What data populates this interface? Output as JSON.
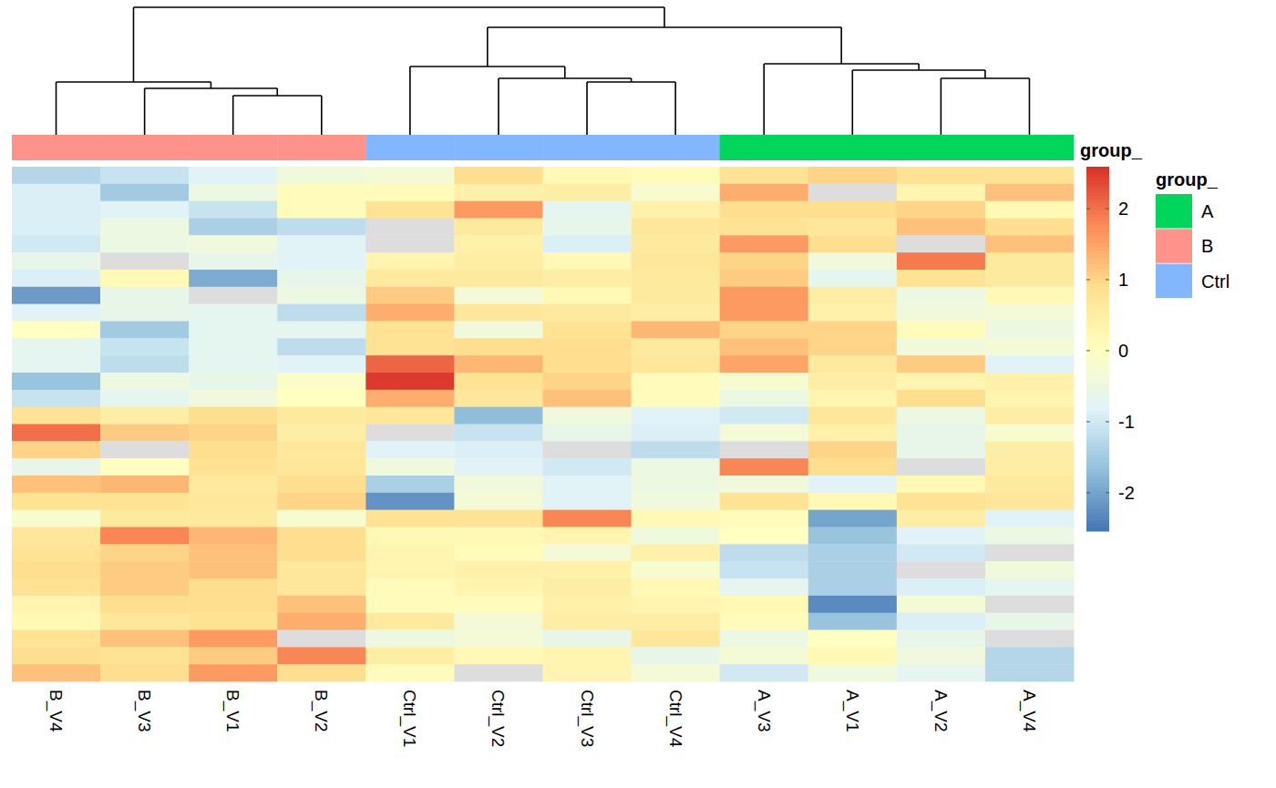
{
  "chart_data": {
    "type": "heatmap",
    "columns": [
      "B_V4",
      "B_V3",
      "B_V1",
      "B_V2",
      "Ctrl_V1",
      "Ctrl_V2",
      "Ctrl_V3",
      "Ctrl_V4",
      "A_V3",
      "A_V1",
      "A_V2",
      "A_V4"
    ],
    "cells": [
      [
        -1.3,
        -1.1,
        -0.8,
        -0.4,
        -0.3,
        0.9,
        0.2,
        0.1,
        0.8,
        1.0,
        0.8,
        0.8
      ],
      [
        -0.9,
        -1.5,
        -0.5,
        0.1,
        0.1,
        0.4,
        0.5,
        -0.2,
        1.4,
        null,
        0.3,
        1.2
      ],
      [
        -0.9,
        -0.8,
        -1.1,
        0.1,
        0.8,
        1.6,
        -0.7,
        0.4,
        0.9,
        0.9,
        1.0,
        0.2
      ],
      [
        -0.9,
        -0.5,
        -1.4,
        -1.2,
        null,
        0.6,
        -0.6,
        0.7,
        0.8,
        0.7,
        1.2,
        0.9
      ],
      [
        -1.0,
        -0.5,
        -0.4,
        -0.8,
        null,
        0.4,
        -0.9,
        0.6,
        1.6,
        0.9,
        null,
        1.2
      ],
      [
        -0.6,
        null,
        -0.6,
        -0.8,
        0.3,
        0.5,
        0.2,
        0.7,
        1.0,
        -0.4,
        1.9,
        0.6
      ],
      [
        -0.9,
        0.2,
        -1.9,
        -0.6,
        0.6,
        0.6,
        0.5,
        0.6,
        1.1,
        -0.7,
        0.8,
        0.6
      ],
      [
        -2.1,
        -0.6,
        null,
        -0.5,
        1.1,
        -0.3,
        0.2,
        0.6,
        1.6,
        0.5,
        -0.5,
        0.2
      ],
      [
        -0.8,
        -0.6,
        -0.7,
        -1.2,
        1.4,
        0.7,
        0.6,
        0.5,
        1.6,
        0.4,
        -0.4,
        -0.3
      ],
      [
        0.0,
        -1.5,
        -0.7,
        -0.7,
        0.8,
        -0.4,
        0.8,
        1.3,
        1.0,
        1.0,
        0.1,
        -0.5
      ],
      [
        -0.7,
        -1.1,
        -0.7,
        -1.2,
        0.8,
        0.9,
        0.9,
        0.6,
        1.2,
        1.0,
        -0.4,
        -0.3
      ],
      [
        -0.7,
        -1.2,
        -0.7,
        -0.8,
        2.1,
        1.3,
        0.9,
        0.7,
        1.5,
        0.6,
        1.1,
        -0.8
      ],
      [
        -1.6,
        -0.5,
        -0.6,
        -0.1,
        2.5,
        0.8,
        1.0,
        0.1,
        -0.2,
        0.5,
        0.3,
        0.4
      ],
      [
        -1.1,
        -0.7,
        -0.4,
        0.0,
        1.4,
        0.7,
        1.2,
        0.1,
        -0.5,
        0.3,
        0.9,
        0.3
      ],
      [
        0.8,
        0.5,
        0.9,
        0.6,
        0.7,
        -1.7,
        -0.4,
        -0.8,
        -1.0,
        0.7,
        -0.5,
        0.5
      ],
      [
        2.0,
        1.1,
        1.0,
        0.5,
        null,
        -1.1,
        -0.6,
        -0.9,
        -0.3,
        0.4,
        -0.6,
        -0.2
      ],
      [
        1.0,
        null,
        0.9,
        0.7,
        -0.8,
        -0.9,
        null,
        -1.2,
        null,
        1.0,
        -0.6,
        0.5
      ],
      [
        -0.6,
        0.0,
        0.8,
        0.7,
        -0.4,
        -0.8,
        -1.0,
        -0.5,
        1.8,
        0.9,
        null,
        0.5
      ],
      [
        1.2,
        1.3,
        0.6,
        0.9,
        -1.4,
        -0.4,
        -0.8,
        -0.5,
        -0.4,
        -0.8,
        0.2,
        0.6
      ],
      [
        0.8,
        0.8,
        0.7,
        1.0,
        -2.2,
        -0.3,
        -0.8,
        -0.4,
        0.8,
        0.2,
        0.8,
        0.7
      ],
      [
        -0.2,
        0.6,
        0.6,
        -0.2,
        0.8,
        0.8,
        1.8,
        0.2,
        0.1,
        -2.0,
        0.5,
        -0.8
      ],
      [
        0.7,
        1.8,
        1.3,
        0.9,
        0.2,
        0.2,
        0.3,
        -0.4,
        0.0,
        -1.6,
        -0.8,
        -0.5
      ],
      [
        0.8,
        1.0,
        1.2,
        0.9,
        0.3,
        0.1,
        -0.3,
        0.4,
        -1.2,
        -1.4,
        -1.0,
        null
      ],
      [
        0.9,
        1.1,
        1.2,
        0.7,
        0.3,
        0.4,
        0.4,
        -0.2,
        -1.1,
        -1.4,
        null,
        -0.4
      ],
      [
        0.8,
        1.1,
        0.9,
        0.7,
        0.1,
        0.3,
        0.5,
        0.2,
        -0.7,
        -1.4,
        -0.9,
        -0.7
      ],
      [
        0.3,
        0.9,
        0.9,
        1.2,
        0.1,
        0.1,
        0.4,
        0.3,
        0.2,
        -2.3,
        -0.3,
        null
      ],
      [
        0.2,
        0.7,
        0.8,
        1.4,
        0.6,
        -0.3,
        0.5,
        0.5,
        0.1,
        -1.6,
        -0.9,
        -0.6
      ],
      [
        0.8,
        1.2,
        1.6,
        null,
        -0.5,
        -0.3,
        -0.6,
        0.7,
        -0.5,
        0.0,
        -0.6,
        null
      ],
      [
        0.9,
        0.8,
        1.1,
        1.8,
        0.5,
        0.2,
        0.3,
        -0.6,
        -0.3,
        0.2,
        -0.4,
        -1.3
      ],
      [
        1.2,
        0.9,
        1.6,
        0.9,
        0.1,
        null,
        0.3,
        -0.3,
        -1.0,
        -0.4,
        -0.7,
        -1.3
      ]
    ],
    "color_scale": {
      "range": [
        -2.54,
        2.59
      ],
      "ticks": [
        -2,
        -1,
        0,
        1,
        2
      ],
      "colors": [
        "#4575B4",
        "#91BFDB",
        "#E0F3F8",
        "#FFFFBF",
        "#FEE090",
        "#FC8D59",
        "#D73027"
      ],
      "na_color": "#DDDDDD"
    },
    "annotation": {
      "title": "group_",
      "groups": [
        "B",
        "B",
        "B",
        "B",
        "Ctrl",
        "Ctrl",
        "Ctrl",
        "Ctrl",
        "A",
        "A",
        "A",
        "A"
      ],
      "levels": [
        {
          "name": "A",
          "color": "#00D65C"
        },
        {
          "name": "B",
          "color": "#FF928A"
        },
        {
          "name": "Ctrl",
          "color": "#82B6FF"
        }
      ]
    },
    "dendrogram": {
      "height": 140,
      "children": [
        {
          "height": 58,
          "children": [
            0,
            {
              "height": 51,
              "children": [
                1,
                {
                  "height": 43,
                  "children": [
                    2,
                    3
                  ]
                }
              ]
            }
          ]
        },
        {
          "height": 118,
          "children": [
            {
              "height": 75,
              "children": [
                4,
                {
                  "height": 62,
                  "children": [
                    5,
                    {
                      "height": 58,
                      "children": [
                        6,
                        7
                      ]
                    }
                  ]
                }
              ]
            },
            {
              "height": 78,
              "children": [
                8,
                {
                  "height": 71,
                  "children": [
                    9,
                    {
                      "height": 62,
                      "children": [
                        10,
                        11
                      ]
                    }
                  ]
                }
              ]
            }
          ]
        }
      ]
    }
  }
}
